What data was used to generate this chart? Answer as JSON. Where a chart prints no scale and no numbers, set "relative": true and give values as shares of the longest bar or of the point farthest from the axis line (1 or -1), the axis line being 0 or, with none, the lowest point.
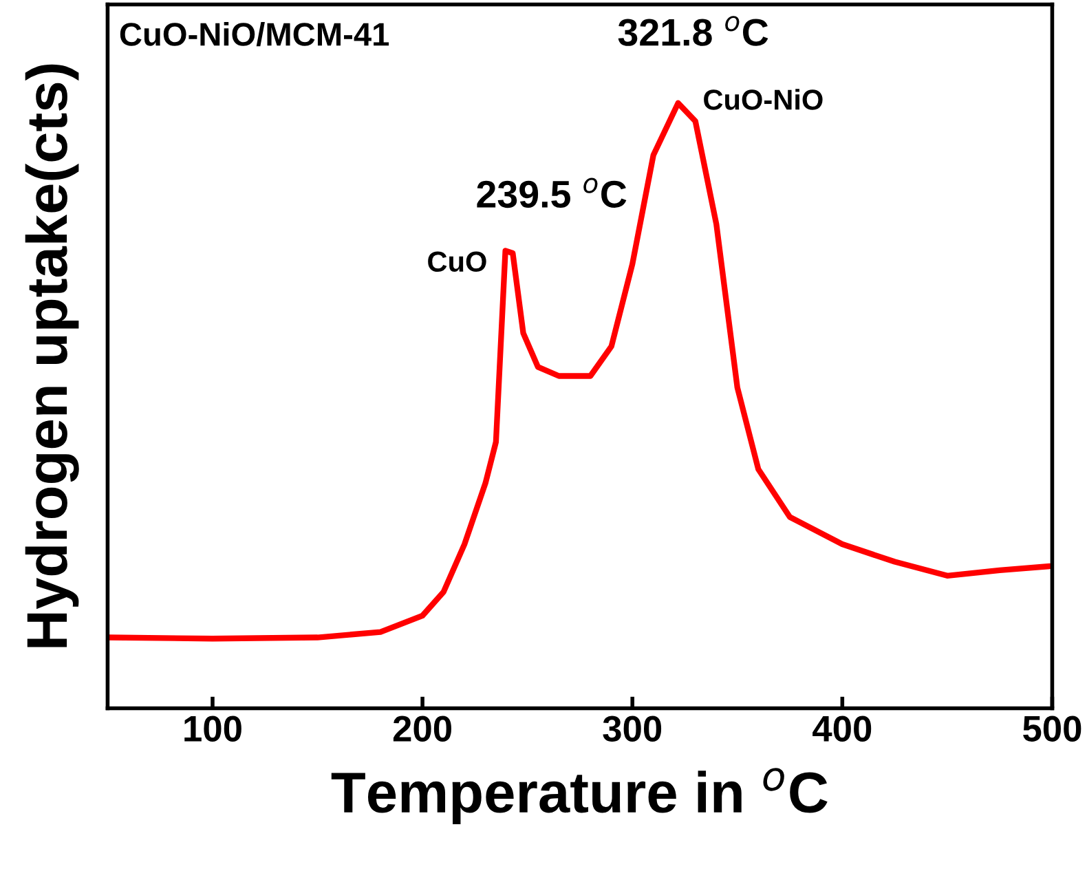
{
  "chart_data": {
    "type": "line",
    "relative": true,
    "xlabel": "Temperature in $^{o}$C",
    "ylabel": "Hydrogen uptake(cts)",
    "xlim": [
      50,
      500
    ],
    "xticks": [
      100,
      200,
      300,
      400,
      500
    ],
    "grid": false,
    "tick_labels": "x",
    "x": [
      50,
      100,
      150,
      180,
      200,
      210,
      220,
      230,
      235,
      239.5,
      243,
      248,
      255,
      265,
      280,
      290,
      300,
      310,
      321.8,
      330,
      340,
      350,
      360,
      375,
      400,
      425,
      450,
      475,
      500
    ],
    "series": [
      {
        "color": "#ff0000",
        "values": [
          0.117,
          0.115,
          0.117,
          0.126,
          0.153,
          0.192,
          0.271,
          0.372,
          0.44,
          0.756,
          0.752,
          0.62,
          0.564,
          0.549,
          0.549,
          0.598,
          0.734,
          0.914,
          1.0,
          0.97,
          0.8,
          0.53,
          0.395,
          0.316,
          0.271,
          0.242,
          0.219,
          0.228,
          0.235
        ]
      }
    ],
    "annotations": [
      "CuO-NiO/MCM-41",
      "239.5 $^{o}$C",
      "CuO",
      "321.8 $^{o}$C",
      "CuO-NiO"
    ]
  }
}
